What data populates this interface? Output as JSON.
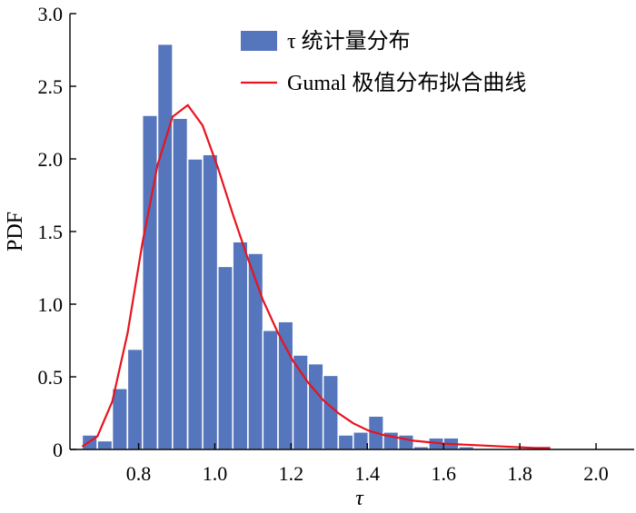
{
  "chart_data": {
    "type": "bar",
    "xlabel": "τ",
    "ylabel": "PDF",
    "xlim": [
      0.62,
      2.1
    ],
    "ylim": [
      0,
      3.0
    ],
    "x_ticks": [
      "0.8",
      "1.0",
      "1.2",
      "1.4",
      "1.6",
      "1.8",
      "2.0"
    ],
    "x_tick_values": [
      0.8,
      1.0,
      1.2,
      1.4,
      1.6,
      1.8,
      2.0
    ],
    "y_ticks": [
      "0",
      "0.5",
      "1.0",
      "1.5",
      "2.0",
      "2.5",
      "3.0"
    ],
    "y_tick_values": [
      0,
      0.5,
      1.0,
      1.5,
      2.0,
      2.5,
      3.0
    ],
    "legend_position": "top-right",
    "histogram": {
      "name": "τ 统计量分布",
      "color": "#5575bd",
      "bin_width": 0.0395,
      "bins": [
        {
          "x0": 0.652,
          "value": 0.1
        },
        {
          "x0": 0.692,
          "value": 0.06
        },
        {
          "x0": 0.731,
          "value": 0.42
        },
        {
          "x0": 0.771,
          "value": 0.69
        },
        {
          "x0": 0.81,
          "value": 2.3
        },
        {
          "x0": 0.85,
          "value": 2.79
        },
        {
          "x0": 0.889,
          "value": 2.28
        },
        {
          "x0": 0.929,
          "value": 2.0
        },
        {
          "x0": 0.968,
          "value": 2.03
        },
        {
          "x0": 1.008,
          "value": 1.26
        },
        {
          "x0": 1.047,
          "value": 1.43
        },
        {
          "x0": 1.087,
          "value": 1.35
        },
        {
          "x0": 1.126,
          "value": 0.82
        },
        {
          "x0": 1.166,
          "value": 0.88
        },
        {
          "x0": 1.205,
          "value": 0.65
        },
        {
          "x0": 1.245,
          "value": 0.59
        },
        {
          "x0": 1.284,
          "value": 0.51
        },
        {
          "x0": 1.324,
          "value": 0.1
        },
        {
          "x0": 1.363,
          "value": 0.12
        },
        {
          "x0": 1.403,
          "value": 0.23
        },
        {
          "x0": 1.442,
          "value": 0.12
        },
        {
          "x0": 1.482,
          "value": 0.1
        },
        {
          "x0": 1.521,
          "value": 0.02
        },
        {
          "x0": 1.561,
          "value": 0.08
        },
        {
          "x0": 1.6,
          "value": 0.08
        },
        {
          "x0": 1.64,
          "value": 0.02
        }
      ]
    },
    "fit": {
      "name": "Gumal 极值分布拟合曲线",
      "color": "#e8141e",
      "points": [
        [
          0.652,
          0.02
        ],
        [
          0.692,
          0.09
        ],
        [
          0.731,
          0.33
        ],
        [
          0.771,
          0.8
        ],
        [
          0.81,
          1.42
        ],
        [
          0.85,
          1.96
        ],
        [
          0.889,
          2.29
        ],
        [
          0.929,
          2.37
        ],
        [
          0.968,
          2.23
        ],
        [
          1.008,
          1.94
        ],
        [
          1.047,
          1.62
        ],
        [
          1.087,
          1.31
        ],
        [
          1.126,
          1.03
        ],
        [
          1.166,
          0.8
        ],
        [
          1.205,
          0.61
        ],
        [
          1.245,
          0.46
        ],
        [
          1.284,
          0.34
        ],
        [
          1.324,
          0.25
        ],
        [
          1.363,
          0.18
        ],
        [
          1.403,
          0.13
        ],
        [
          1.442,
          0.1
        ],
        [
          1.482,
          0.08
        ],
        [
          1.521,
          0.06
        ],
        [
          1.561,
          0.05
        ],
        [
          1.6,
          0.04
        ],
        [
          1.68,
          0.03
        ],
        [
          1.76,
          0.02
        ],
        [
          1.84,
          0.01
        ],
        [
          1.88,
          0.01
        ]
      ]
    }
  }
}
